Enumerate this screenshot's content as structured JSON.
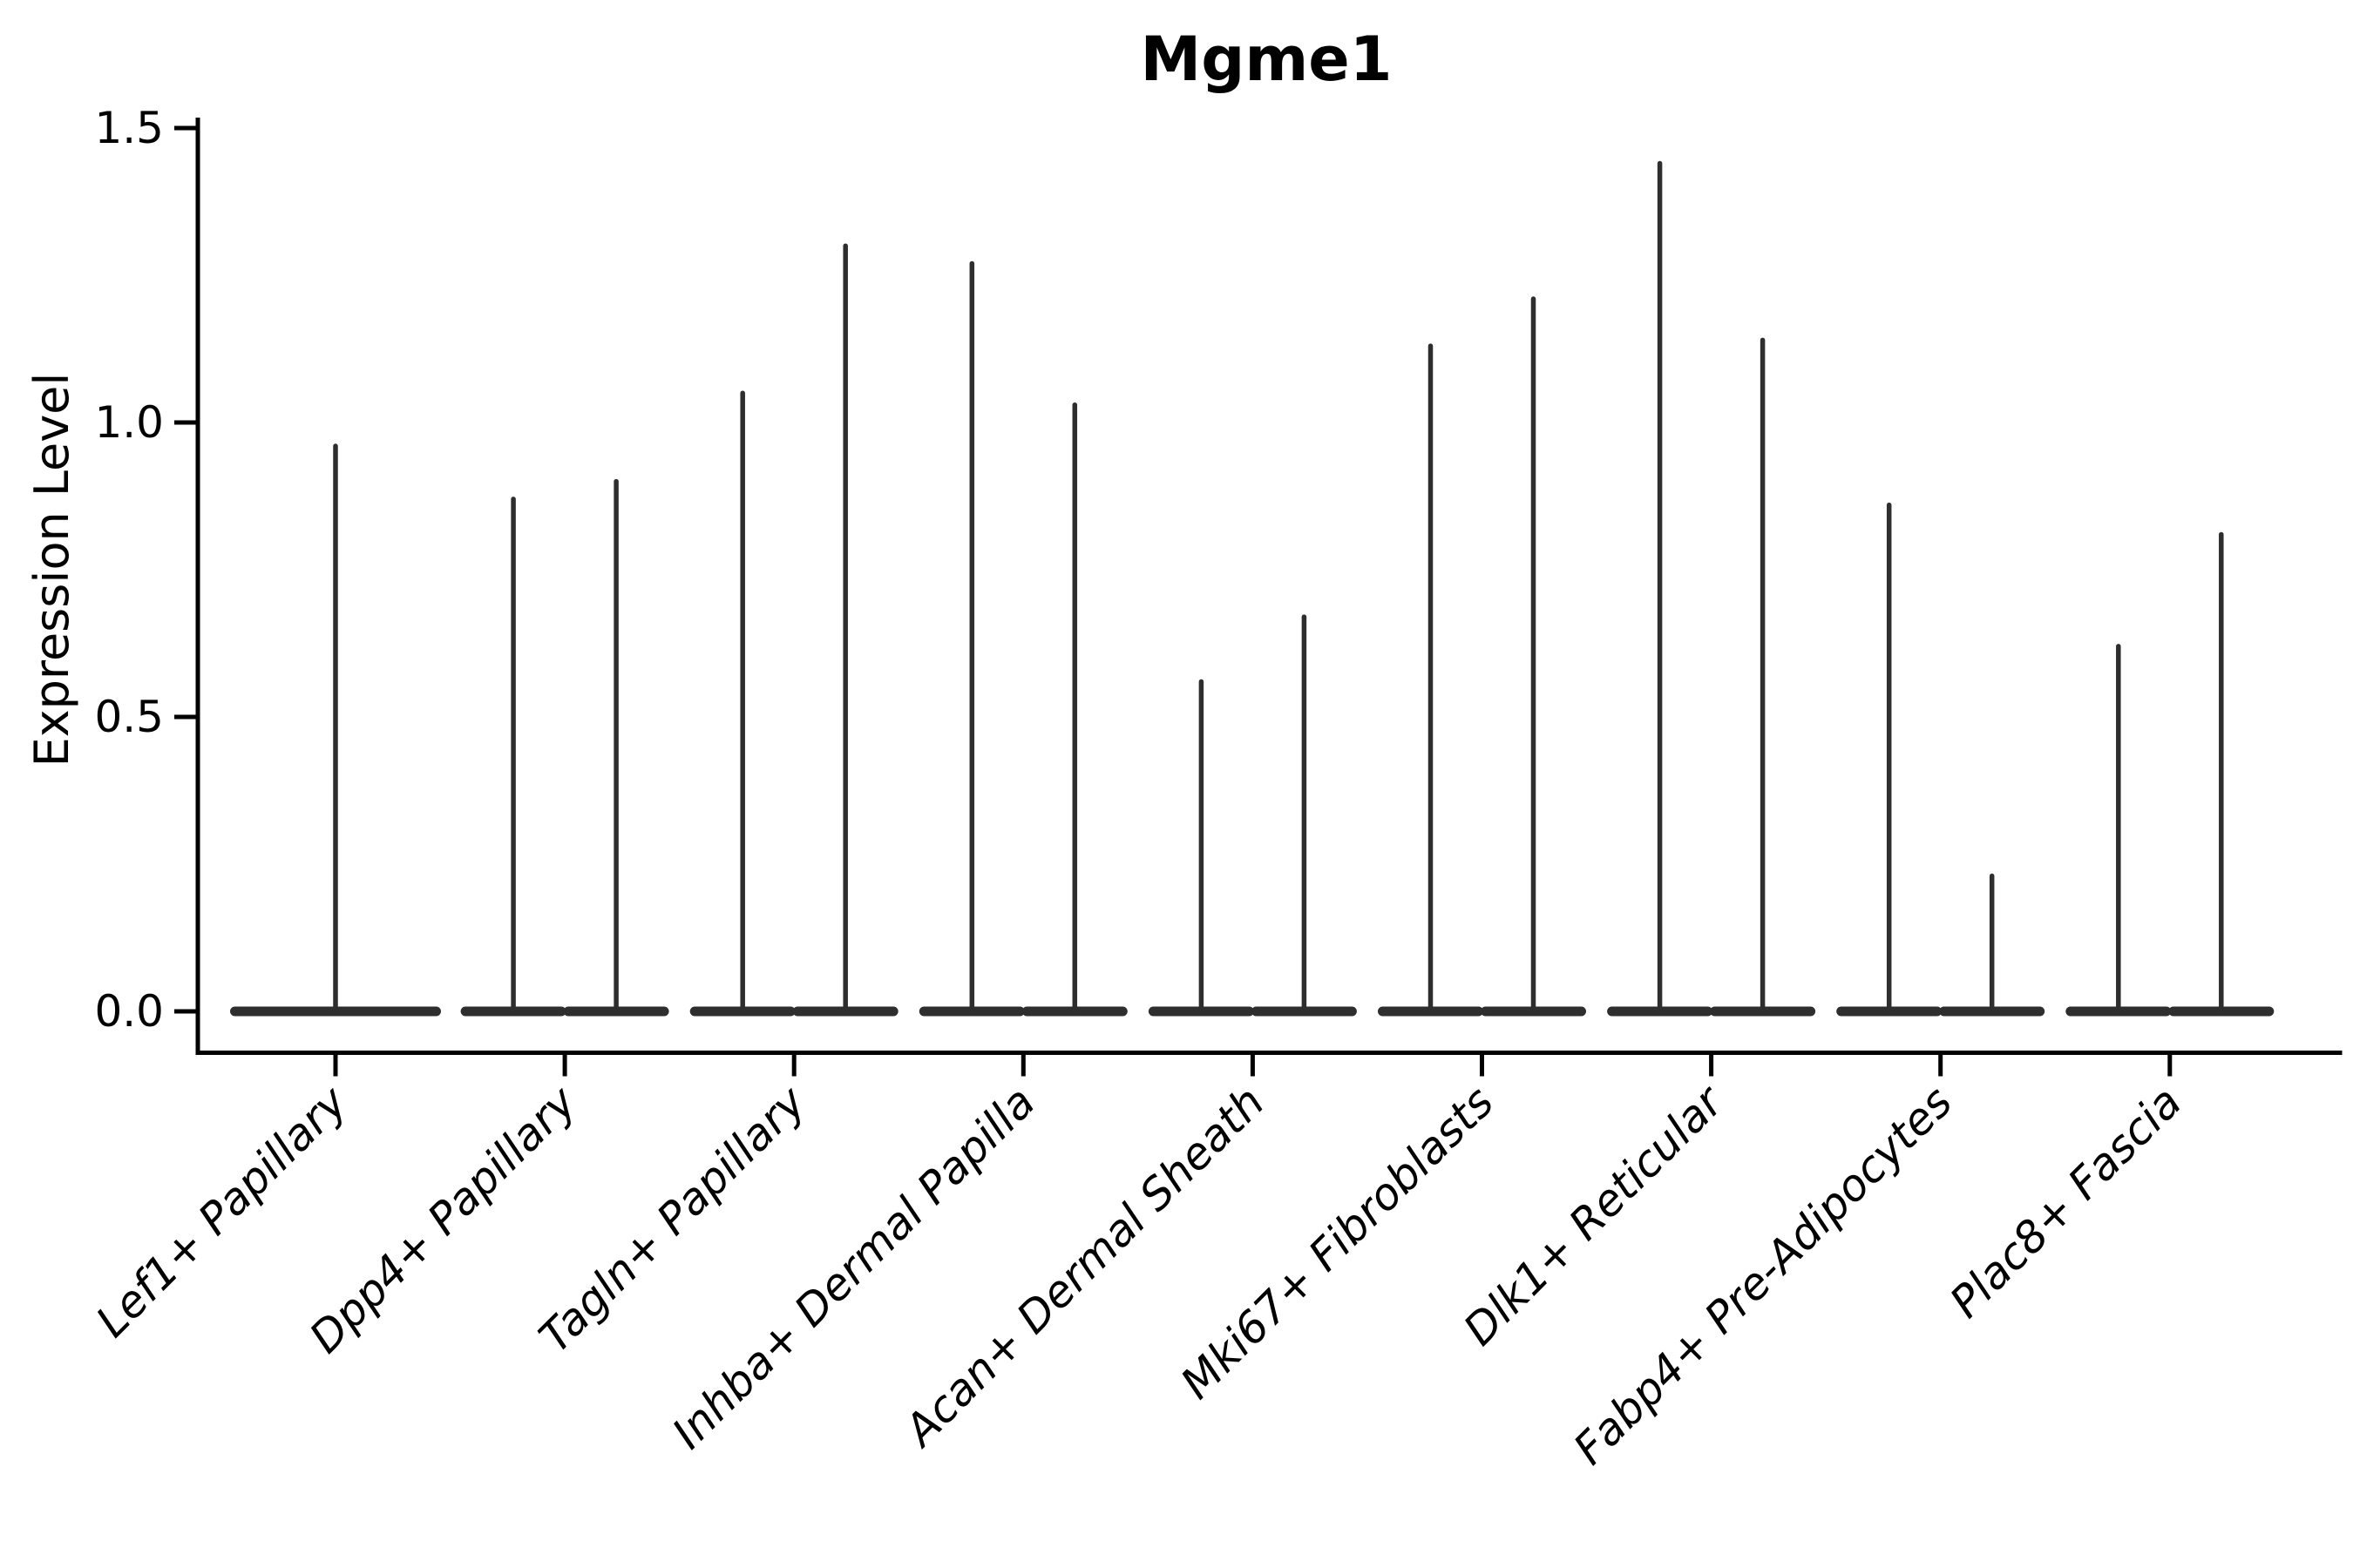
{
  "chart_data": {
    "type": "violin",
    "title": "Mgme1",
    "xlabel": "",
    "ylabel": "Expression Level",
    "ylim": [
      0.0,
      1.5
    ],
    "grid": false,
    "legend": "none",
    "y_ticks": [
      {
        "label": "0.0",
        "value": 0.0
      },
      {
        "label": "0.5",
        "value": 0.5
      },
      {
        "label": "1.0",
        "value": 1.0
      },
      {
        "label": "1.5",
        "value": 1.5
      }
    ],
    "categories": [
      "Lef1+ Papillary",
      "Dpp4+ Papillary",
      "Tagln+ Papillary",
      "Inhba+ Dermal Papilla",
      "Acan+ Dermal Sheath",
      "Mki67+ Fibroblasts",
      "Dlk1+ Reticular",
      "Fabp4+ Pre-Adipocytes",
      "Plac8+ Fascia"
    ],
    "violins": [
      {
        "category": "Lef1+ Papillary",
        "peaks": [
          0.96
        ]
      },
      {
        "category": "Dpp4+ Papillary",
        "peaks": [
          0.87,
          0.9
        ]
      },
      {
        "category": "Tagln+ Papillary",
        "peaks": [
          1.05,
          1.3
        ]
      },
      {
        "category": "Inhba+ Dermal Papilla",
        "peaks": [
          1.27,
          1.03
        ]
      },
      {
        "category": "Acan+ Dermal Sheath",
        "peaks": [
          0.56,
          0.67
        ]
      },
      {
        "category": "Mki67+ Fibroblasts",
        "peaks": [
          1.13,
          1.21
        ]
      },
      {
        "category": "Dlk1+ Reticular",
        "peaks": [
          1.44,
          1.14
        ]
      },
      {
        "category": "Fabp4+ Pre-Adipocytes",
        "peaks": [
          0.86,
          0.23
        ]
      },
      {
        "category": "Plac8+ Fascia",
        "peaks": [
          0.62,
          0.81
        ]
      }
    ],
    "shape_note": "Each violin collapses to a thin vertical spike (sparse high values) with a wide flat base at expression 0",
    "colors": {
      "violin_ink": "#2e2e2e",
      "axis": "#000000",
      "background": "#ffffff"
    }
  }
}
